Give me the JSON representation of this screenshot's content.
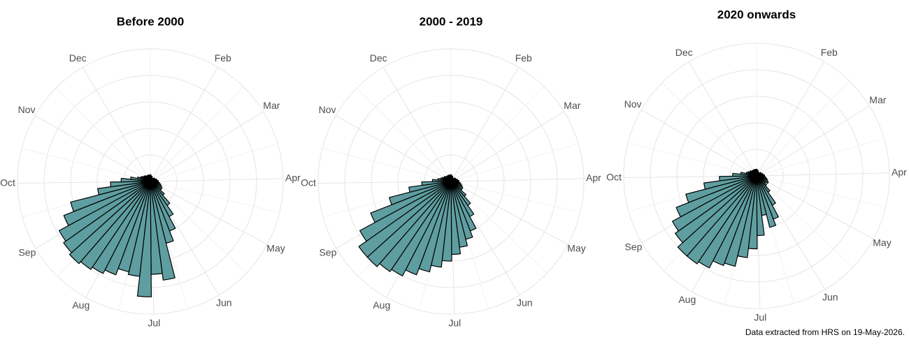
{
  "chart_data": [
    {
      "type": "bar",
      "coord": "polar",
      "title": "Before 2000",
      "color": "#5f9ea0",
      "x": [
        0,
        7,
        14,
        21,
        28,
        35,
        42,
        49,
        56,
        63,
        70,
        77,
        84,
        91,
        98,
        105,
        112,
        119,
        126,
        133,
        140,
        147,
        154,
        161,
        168,
        175,
        182,
        189,
        196,
        203,
        210,
        217,
        224,
        231,
        238,
        245,
        252,
        259,
        266,
        273,
        280,
        287,
        294,
        301,
        308,
        315,
        322,
        329,
        336,
        343,
        350,
        357
      ],
      "values": [
        5,
        4,
        4,
        3,
        3,
        3,
        3,
        4,
        4,
        4,
        5,
        5,
        6,
        6,
        7,
        8,
        9,
        10,
        10,
        14,
        22,
        30,
        40,
        48,
        75,
        70,
        87,
        72,
        70,
        75,
        78,
        80,
        82,
        80,
        78,
        70,
        62,
        40,
        30,
        22,
        15,
        10,
        8,
        7,
        6,
        6,
        5,
        5,
        5,
        5,
        5,
        5
      ],
      "xlim": [
        0,
        365
      ],
      "ylim": [
        0,
        100
      ],
      "yticks": [
        20,
        40,
        60,
        80,
        100
      ],
      "xticks": [
        {
          "value": 31,
          "label": "Feb"
        },
        {
          "value": 59,
          "label": "Mar"
        },
        {
          "value": 90,
          "label": "Apr"
        },
        {
          "value": 120,
          "label": "May"
        },
        {
          "value": 151,
          "label": "Jun"
        },
        {
          "value": 181,
          "label": "Jul"
        },
        {
          "value": 212,
          "label": "Aug"
        },
        {
          "value": 243,
          "label": "Sep"
        },
        {
          "value": 273,
          "label": "Oct"
        },
        {
          "value": 304,
          "label": "Nov"
        },
        {
          "value": 334,
          "label": "Dec"
        }
      ],
      "grid": true
    },
    {
      "type": "bar",
      "coord": "polar",
      "title": "2000 - 2019",
      "color": "#5f9ea0",
      "x": [
        0,
        7,
        14,
        21,
        28,
        35,
        42,
        49,
        56,
        63,
        70,
        77,
        84,
        91,
        98,
        105,
        112,
        119,
        126,
        133,
        140,
        147,
        154,
        161,
        168,
        175,
        182,
        189,
        196,
        203,
        210,
        217,
        224,
        231,
        238,
        245,
        252,
        259,
        266,
        273,
        280,
        287,
        294,
        301,
        308,
        315,
        322,
        329,
        336,
        343,
        350,
        357
      ],
      "values": [
        5,
        4,
        4,
        3,
        3,
        3,
        3,
        4,
        4,
        4,
        5,
        5,
        6,
        6,
        7,
        8,
        9,
        10,
        10,
        15,
        22,
        30,
        40,
        45,
        50,
        55,
        60,
        65,
        70,
        75,
        80,
        82,
        85,
        85,
        78,
        65,
        48,
        32,
        22,
        14,
        10,
        8,
        7,
        6,
        6,
        5,
        5,
        5,
        5,
        5,
        5,
        5
      ],
      "xlim": [
        0,
        365
      ],
      "ylim": [
        0,
        100
      ],
      "yticks": [
        20,
        40,
        60,
        80,
        100
      ],
      "xticks": [
        {
          "value": 31,
          "label": "Feb"
        },
        {
          "value": 59,
          "label": "Mar"
        },
        {
          "value": 90,
          "label": "Apr"
        },
        {
          "value": 120,
          "label": "May"
        },
        {
          "value": 151,
          "label": "Jun"
        },
        {
          "value": 181,
          "label": "Jul"
        },
        {
          "value": 212,
          "label": "Aug"
        },
        {
          "value": 243,
          "label": "Sep"
        },
        {
          "value": 273,
          "label": "Oct"
        },
        {
          "value": 304,
          "label": "Nov"
        },
        {
          "value": 334,
          "label": "Dec"
        }
      ],
      "grid": true
    },
    {
      "type": "bar",
      "coord": "polar",
      "title": "2020 onwards",
      "color": "#5f9ea0",
      "x": [
        0,
        7,
        14,
        21,
        28,
        35,
        42,
        49,
        56,
        63,
        70,
        77,
        84,
        91,
        98,
        105,
        112,
        119,
        126,
        133,
        140,
        147,
        154,
        161,
        168,
        175,
        182,
        189,
        196,
        203,
        210,
        217,
        224,
        231,
        238,
        245,
        252,
        259,
        266,
        273,
        280,
        287,
        294,
        301,
        308,
        315,
        322,
        329,
        336,
        343,
        350,
        357
      ],
      "values": [
        5,
        4,
        4,
        3,
        3,
        3,
        3,
        4,
        4,
        4,
        5,
        5,
        6,
        6,
        7,
        8,
        9,
        10,
        8,
        10,
        15,
        25,
        35,
        40,
        30,
        45,
        55,
        62,
        70,
        72,
        78,
        80,
        80,
        75,
        72,
        65,
        55,
        40,
        28,
        18,
        12,
        8,
        7,
        6,
        6,
        5,
        5,
        5,
        5,
        5,
        5,
        5
      ],
      "xlim": [
        0,
        365
      ],
      "ylim": [
        0,
        100
      ],
      "yticks": [
        20,
        40,
        60,
        80,
        100
      ],
      "xticks": [
        {
          "value": 31,
          "label": "Feb"
        },
        {
          "value": 59,
          "label": "Mar"
        },
        {
          "value": 90,
          "label": "Apr"
        },
        {
          "value": 120,
          "label": "May"
        },
        {
          "value": 151,
          "label": "Jun"
        },
        {
          "value": 181,
          "label": "Jul"
        },
        {
          "value": 212,
          "label": "Aug"
        },
        {
          "value": 243,
          "label": "Sep"
        },
        {
          "value": 273,
          "label": "Oct"
        },
        {
          "value": 304,
          "label": "Nov"
        },
        {
          "value": 334,
          "label": "Dec"
        }
      ],
      "grid": true
    }
  ],
  "caption": "Data extracted from HRS on 19-May-2026."
}
